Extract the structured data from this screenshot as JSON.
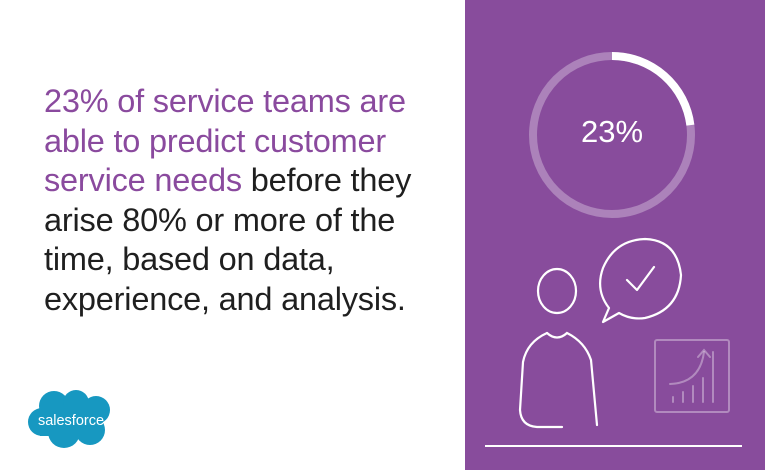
{
  "statement": {
    "highlight": "23% of service teams are able to predict customer service needs",
    "rest": " before they arise 80% or more of the time, based on data, experience, and analysis."
  },
  "logo_text": "salesforce",
  "stat_ring": {
    "label": "23%",
    "value": 0.23
  },
  "colors": {
    "panel": "#884c9c",
    "accent_text": "#8a4a9e",
    "logo": "#1798c1"
  },
  "icons": [
    "person-icon",
    "speech-bubble-check-icon",
    "growth-chart-icon"
  ]
}
